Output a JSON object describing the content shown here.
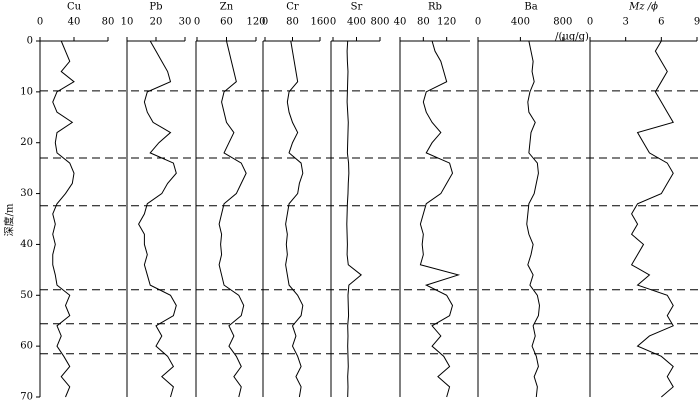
{
  "depth": {
    "label": "深度/m",
    "lim": [
      0,
      70
    ],
    "ticks": [
      0,
      10,
      20,
      30,
      40,
      50,
      60,
      70
    ],
    "values": [
      0,
      2,
      4,
      6,
      8,
      10,
      12,
      14,
      16,
      18,
      20,
      22,
      24,
      26,
      28,
      30,
      32,
      34,
      36,
      38,
      40,
      42,
      44,
      46,
      48,
      50,
      52,
      54,
      56,
      58,
      60,
      62,
      64,
      66,
      68,
      70
    ]
  },
  "boundaries": [
    9.8,
    23,
    32.4,
    48.9,
    55.6,
    61.5
  ],
  "unit_label": "/(μg/g)",
  "chart_data": [
    {
      "type": "line",
      "title": "Cu",
      "xlim": [
        0,
        80
      ],
      "xticks": [
        0,
        40,
        80
      ],
      "color": "#000000",
      "values": [
        25,
        30,
        35,
        25,
        40,
        20,
        15,
        20,
        38,
        20,
        18,
        20,
        35,
        40,
        38,
        30,
        20,
        15,
        18,
        15,
        18,
        15,
        15,
        18,
        20,
        35,
        30,
        35,
        20,
        25,
        20,
        28,
        35,
        25,
        35,
        30
      ]
    },
    {
      "type": "line",
      "title": "Pb",
      "xlim": [
        10,
        30
      ],
      "xticks": [
        10,
        20,
        30
      ],
      "color": "#000000",
      "values": [
        18,
        20,
        22,
        24,
        25,
        17,
        16,
        17,
        19,
        25,
        21,
        18,
        26,
        27,
        24,
        22,
        17,
        16,
        14,
        16,
        16,
        17,
        16,
        17,
        18,
        25,
        27,
        26,
        20,
        22,
        20,
        24,
        26,
        22,
        26,
        25
      ]
    },
    {
      "type": "line",
      "title": "Zn",
      "xlim": [
        0,
        120
      ],
      "xticks": [
        0,
        60,
        120
      ],
      "color": "#000000",
      "values": [
        60,
        65,
        70,
        75,
        80,
        55,
        50,
        55,
        60,
        75,
        65,
        55,
        90,
        100,
        90,
        80,
        55,
        50,
        45,
        50,
        48,
        50,
        45,
        50,
        55,
        85,
        95,
        90,
        65,
        75,
        65,
        80,
        90,
        75,
        90,
        85
      ]
    },
    {
      "type": "line",
      "title": "Cr",
      "xlim": [
        0,
        160
      ],
      "xticks": [
        0,
        80,
        160
      ],
      "color": "#000000",
      "values": [
        75,
        80,
        85,
        90,
        95,
        70,
        65,
        70,
        80,
        95,
        80,
        70,
        105,
        110,
        100,
        95,
        70,
        65,
        60,
        65,
        62,
        65,
        60,
        65,
        70,
        95,
        110,
        105,
        80,
        90,
        80,
        95,
        105,
        90,
        105,
        100
      ]
    },
    {
      "type": "line",
      "title": "Sr",
      "xlim": [
        0,
        800
      ],
      "xticks": [
        0,
        400,
        800
      ],
      "color": "#000000",
      "values": [
        250,
        240,
        245,
        255,
        250,
        245,
        240,
        250,
        260,
        255,
        250,
        245,
        265,
        270,
        260,
        255,
        245,
        240,
        235,
        240,
        245,
        240,
        260,
        480,
        270,
        255,
        260,
        265,
        250,
        255,
        250,
        255,
        260,
        250,
        255,
        250
      ]
    },
    {
      "type": "line",
      "title": "Rb",
      "xlim": [
        40,
        160
      ],
      "xticks": [
        40,
        80,
        120
      ],
      "color": "#000000",
      "values": [
        95,
        100,
        110,
        115,
        120,
        85,
        80,
        85,
        95,
        110,
        95,
        85,
        125,
        130,
        120,
        110,
        85,
        80,
        75,
        80,
        78,
        80,
        75,
        140,
        85,
        120,
        130,
        125,
        95,
        110,
        95,
        115,
        125,
        105,
        125,
        120
      ]
    },
    {
      "type": "line",
      "title": "Ba",
      "xlim": [
        0,
        1000
      ],
      "xticks": [
        0,
        400,
        800
      ],
      "color": "#000000",
      "values": [
        480,
        500,
        520,
        510,
        530,
        490,
        470,
        480,
        540,
        500,
        490,
        480,
        560,
        570,
        550,
        530,
        480,
        470,
        460,
        480,
        520,
        500,
        470,
        520,
        490,
        560,
        580,
        570,
        520,
        540,
        510,
        550,
        570,
        530,
        560,
        550
      ]
    },
    {
      "type": "line",
      "title": "Mz /ϕ",
      "xlim": [
        0,
        9
      ],
      "xticks": [
        0,
        3,
        6,
        9
      ],
      "color": "#000000",
      "values": [
        6,
        5.5,
        6,
        6.5,
        6,
        5.5,
        6,
        6.5,
        7,
        4,
        4.5,
        5,
        6.5,
        7,
        6.5,
        6,
        4,
        3.5,
        4,
        3.5,
        4.5,
        4,
        3.5,
        5,
        4,
        6.5,
        7,
        6.5,
        7,
        5,
        4,
        6,
        7,
        6.5,
        7,
        6
      ]
    }
  ]
}
